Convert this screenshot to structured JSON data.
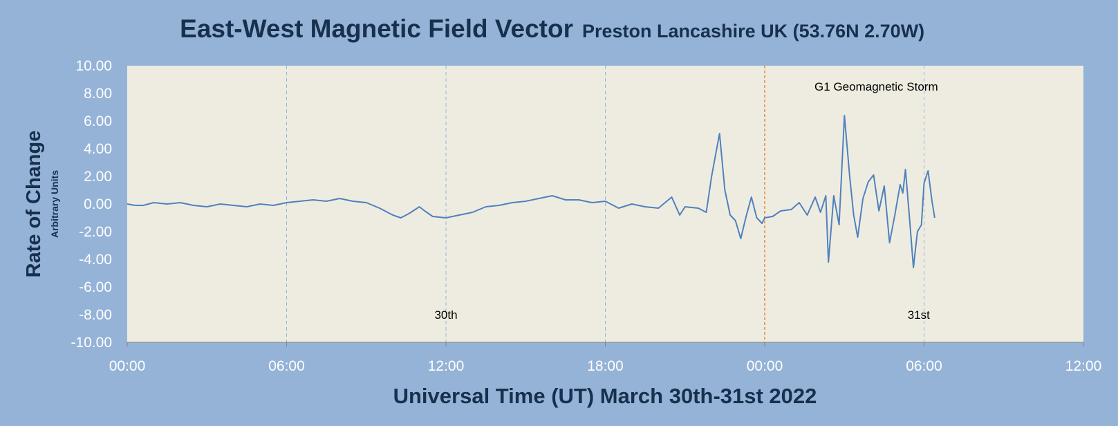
{
  "chart_data": {
    "type": "line",
    "title": "East-West Magnetic Field Vector",
    "subtitle": "Preston Lancashire UK (53.76N 2.70W)",
    "xlabel": "Universal Time (UT) March 30th-31st 2022",
    "ylabel": "Rate of Change",
    "ylabel_sub": "Arbitrary Units",
    "ylim": [
      -10,
      10
    ],
    "xlim_hours": [
      0,
      36
    ],
    "y_ticks": [
      10,
      8,
      6,
      4,
      2,
      0,
      -2,
      -4,
      -6,
      -8,
      -10
    ],
    "y_tick_labels": [
      "10.00",
      "8.00",
      "6.00",
      "4.00",
      "2.00",
      "0.00",
      "-2.00",
      "-4.00",
      "-6.00",
      "-8.00",
      "-10.00"
    ],
    "x_ticks_hours": [
      0,
      6,
      12,
      18,
      24,
      30,
      36
    ],
    "x_tick_labels": [
      "00:00",
      "06:00",
      "12:00",
      "18:00",
      "00:00",
      "06:00",
      "12:00"
    ],
    "vertical_gridlines_hours": [
      6,
      12,
      18,
      30
    ],
    "marker_line_hour": 24,
    "annotations": [
      {
        "text": "30th",
        "x_hour": 12.0,
        "y": -8.3
      },
      {
        "text": "31st",
        "x_hour": 29.8,
        "y": -8.3
      },
      {
        "text": "G1 Geomagnetic Storm",
        "x_hour": 28.2,
        "y": 8.2
      }
    ],
    "series": [
      {
        "color": "#4f81bd",
        "x_hours": [
          0,
          0.3,
          0.6,
          1.0,
          1.5,
          2.0,
          2.5,
          3.0,
          3.5,
          4.0,
          4.5,
          5.0,
          5.5,
          6.0,
          6.5,
          7.0,
          7.5,
          8.0,
          8.5,
          9.0,
          9.5,
          10.0,
          10.3,
          10.6,
          11.0,
          11.2,
          11.5,
          12.0,
          12.5,
          13.0,
          13.5,
          14.0,
          14.5,
          15.0,
          15.5,
          16.0,
          16.5,
          17.0,
          17.5,
          18.0,
          18.5,
          19.0,
          19.5,
          20.0,
          20.5,
          20.8,
          21.0,
          21.5,
          21.8,
          22.0,
          22.3,
          22.5,
          22.7,
          22.9,
          23.1,
          23.3,
          23.5,
          23.7,
          23.9,
          24.0,
          24.3,
          24.6,
          25.0,
          25.3,
          25.6,
          25.9,
          26.1,
          26.3,
          26.4,
          26.6,
          26.8,
          27.0,
          27.1,
          27.2,
          27.35,
          27.5,
          27.7,
          27.9,
          28.1,
          28.3,
          28.5,
          28.7,
          28.9,
          29.1,
          29.2,
          29.3,
          29.45,
          29.6,
          29.75,
          29.9,
          30.0,
          30.15,
          30.3,
          30.4
        ],
        "y": [
          0,
          -0.1,
          -0.1,
          0.1,
          0.0,
          0.1,
          -0.1,
          -0.2,
          0.0,
          -0.1,
          -0.2,
          0.0,
          -0.1,
          0.1,
          0.2,
          0.3,
          0.2,
          0.4,
          0.2,
          0.1,
          -0.3,
          -0.8,
          -1.0,
          -0.7,
          -0.2,
          -0.5,
          -0.9,
          -1.0,
          -0.8,
          -0.6,
          -0.2,
          -0.1,
          0.1,
          0.2,
          0.4,
          0.6,
          0.3,
          0.3,
          0.1,
          0.2,
          -0.3,
          0.0,
          -0.2,
          -0.3,
          0.5,
          -0.8,
          -0.2,
          -0.3,
          -0.6,
          2.0,
          5.1,
          1.0,
          -0.8,
          -1.2,
          -2.5,
          -0.9,
          0.5,
          -1.0,
          -1.4,
          -1.0,
          -0.9,
          -0.5,
          -0.4,
          0.1,
          -0.8,
          0.5,
          -0.6,
          0.6,
          -4.2,
          0.6,
          -1.5,
          6.4,
          4.2,
          2.0,
          -0.8,
          -2.4,
          0.4,
          1.6,
          2.1,
          -0.5,
          1.3,
          -2.8,
          -0.8,
          1.4,
          0.8,
          2.5,
          -1.0,
          -4.6,
          -2.0,
          -1.5,
          1.5,
          2.4,
          0.2,
          -1.0
        ]
      }
    ]
  }
}
